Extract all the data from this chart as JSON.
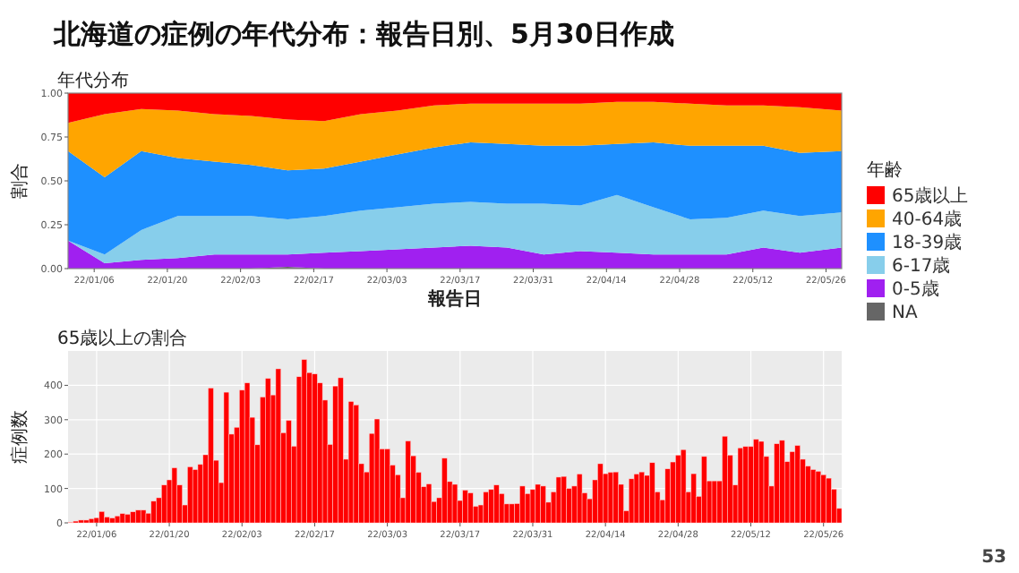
{
  "chart_data": [
    {
      "type": "area",
      "title": "北海道の症例の年代分布：報告日別、5月30日作成",
      "subtitle": "年代分布",
      "xlabel": "報告日",
      "ylabel": "割合",
      "legend_title": "年齢",
      "stacked": true,
      "legend": "right",
      "x": [
        "--01-01",
        "--01-08",
        "--01-15",
        "--01-22",
        "--01-29",
        "--02-05",
        "--02-12",
        "--02-19",
        "--02-26",
        "--03-05",
        "--03-12",
        "--03-19",
        "--03-26",
        "--04-02",
        "--04-09",
        "--04-16",
        "--04-23",
        "--04-30",
        "--05-07",
        "--05-14",
        "--05-21",
        "--05-29"
      ],
      "xlim": [
        "--01-01",
        "--05-29"
      ],
      "xticks": [
        {
          "value": "--01-06",
          "label": "22/01/06"
        },
        {
          "value": "--01-20",
          "label": "22/01/20"
        },
        {
          "value": "--02-03",
          "label": "22/02/03"
        },
        {
          "value": "--02-17",
          "label": "22/02/17"
        },
        {
          "value": "--03-03",
          "label": "22/03/03"
        },
        {
          "value": "--03-17",
          "label": "22/03/17"
        },
        {
          "value": "--03-31",
          "label": "22/03/31"
        },
        {
          "value": "--04-14",
          "label": "22/04/14"
        },
        {
          "value": "--04-28",
          "label": "22/04/28"
        },
        {
          "value": "--05-12",
          "label": "22/05/12"
        },
        {
          "value": "--05-26",
          "label": "22/05/26"
        }
      ],
      "ylim": [
        0,
        1
      ],
      "yticks": [
        {
          "value": 0,
          "label": "0.00"
        },
        {
          "value": 0.25,
          "label": "0.25"
        },
        {
          "value": 0.5,
          "label": "0.50"
        },
        {
          "value": 0.75,
          "label": "0.75"
        },
        {
          "value": 1,
          "label": "1.00"
        }
      ],
      "series": [
        {
          "name": "NA",
          "color": "#666666",
          "values": [
            0,
            0,
            0,
            0,
            0,
            0,
            0.01,
            0,
            0,
            0,
            0,
            0,
            0,
            0,
            0,
            0,
            0,
            0,
            0,
            0,
            0,
            0
          ]
        },
        {
          "name": "0-5歳",
          "color": "#a020f0",
          "values": [
            0.16,
            0.03,
            0.05,
            0.06,
            0.08,
            0.08,
            0.07,
            0.09,
            0.1,
            0.11,
            0.12,
            0.13,
            0.12,
            0.08,
            0.1,
            0.09,
            0.08,
            0.08,
            0.08,
            0.12,
            0.09,
            0.12
          ]
        },
        {
          "name": "6-17歳",
          "color": "#87ceeb",
          "values": [
            0,
            0.05,
            0.17,
            0.24,
            0.22,
            0.22,
            0.2,
            0.21,
            0.23,
            0.24,
            0.25,
            0.25,
            0.25,
            0.29,
            0.26,
            0.33,
            0.27,
            0.2,
            0.21,
            0.21,
            0.21,
            0.2
          ]
        },
        {
          "name": "18-39歳",
          "color": "#1e90ff",
          "values": [
            0.51,
            0.44,
            0.45,
            0.33,
            0.31,
            0.29,
            0.28,
            0.27,
            0.28,
            0.3,
            0.32,
            0.34,
            0.34,
            0.33,
            0.34,
            0.29,
            0.37,
            0.42,
            0.41,
            0.37,
            0.36,
            0.35
          ]
        },
        {
          "name": "40-64歳",
          "color": "#ffa500",
          "values": [
            0.16,
            0.36,
            0.24,
            0.27,
            0.27,
            0.28,
            0.29,
            0.27,
            0.27,
            0.25,
            0.24,
            0.22,
            0.23,
            0.24,
            0.24,
            0.24,
            0.23,
            0.24,
            0.23,
            0.23,
            0.26,
            0.23
          ]
        },
        {
          "name": "65歳以上",
          "color": "#ff0000",
          "values": [
            0.17,
            0.12,
            0.09,
            0.1,
            0.12,
            0.13,
            0.15,
            0.16,
            0.12,
            0.1,
            0.07,
            0.06,
            0.06,
            0.06,
            0.06,
            0.05,
            0.05,
            0.06,
            0.07,
            0.07,
            0.08,
            0.1
          ]
        }
      ]
    },
    {
      "type": "bar",
      "title": "65歳以上の割合",
      "ylabel": "症例数",
      "color": "#ff0000",
      "grid": true,
      "ylim": [
        0,
        500
      ],
      "yticks": [
        0,
        100,
        200,
        300,
        400
      ],
      "annotations": [
        "53"
      ],
      "categories": [
        null,
        null,
        null,
        null,
        null,
        "22/01/06",
        null,
        null,
        null,
        null,
        null,
        null,
        null,
        null,
        null,
        null,
        null,
        null,
        null,
        "22/01/20",
        null,
        null,
        null,
        null,
        null,
        null,
        null,
        null,
        null,
        null,
        null,
        null,
        null,
        "22/02/03",
        null,
        null,
        null,
        null,
        null,
        null,
        null,
        null,
        null,
        null,
        null,
        null,
        null,
        "22/02/17",
        null,
        null,
        null,
        null,
        null,
        null,
        null,
        null,
        null,
        null,
        null,
        null,
        null,
        "22/03/03",
        null,
        null,
        null,
        null,
        null,
        null,
        null,
        null,
        null,
        null,
        null,
        null,
        null,
        "22/03/17",
        null,
        null,
        null,
        null,
        null,
        null,
        null,
        null,
        null,
        null,
        null,
        null,
        null,
        "22/03/31",
        null,
        null,
        null,
        null,
        null,
        null,
        null,
        null,
        null,
        null,
        null,
        null,
        null,
        "22/04/14",
        null,
        null,
        null,
        null,
        null,
        null,
        null,
        null,
        null,
        null,
        null,
        null,
        null,
        "22/04/28",
        null,
        null,
        null,
        null,
        null,
        null,
        null,
        null,
        null,
        null,
        null,
        null,
        null,
        "22/05/12",
        null,
        null,
        null,
        null,
        null,
        null,
        null,
        null,
        null,
        null,
        null,
        null,
        null,
        "22/05/26",
        null,
        null,
        null
      ],
      "values": [
        2,
        5,
        8,
        8,
        12,
        15,
        33,
        17,
        14,
        20,
        27,
        25,
        32,
        37,
        37,
        28,
        63,
        73,
        110,
        125,
        160,
        110,
        52,
        163,
        155,
        170,
        198,
        392,
        182,
        117,
        380,
        258,
        278,
        386,
        407,
        307,
        227,
        366,
        420,
        372,
        448,
        262,
        298,
        223,
        425,
        475,
        437,
        433,
        407,
        357,
        228,
        398,
        422,
        185,
        353,
        343,
        172,
        148,
        260,
        302,
        215,
        215,
        168,
        140,
        73,
        238,
        195,
        147,
        105,
        113,
        62,
        73,
        188,
        120,
        112,
        65,
        95,
        87,
        48,
        52,
        90,
        97,
        110,
        85,
        55,
        55,
        56,
        107,
        85,
        97,
        112,
        107,
        60,
        90,
        133,
        135,
        100,
        107,
        142,
        87,
        70,
        125,
        172,
        143,
        147,
        148,
        112,
        35,
        128,
        142,
        148,
        138,
        175,
        90,
        67,
        157,
        177,
        197,
        213,
        90,
        143,
        77,
        193,
        122,
        122,
        122,
        252,
        197,
        110,
        218,
        222,
        222,
        243,
        237,
        193,
        107,
        230,
        240,
        178,
        207,
        225,
        185,
        165,
        155,
        150,
        140,
        130,
        98,
        42
      ]
    }
  ]
}
